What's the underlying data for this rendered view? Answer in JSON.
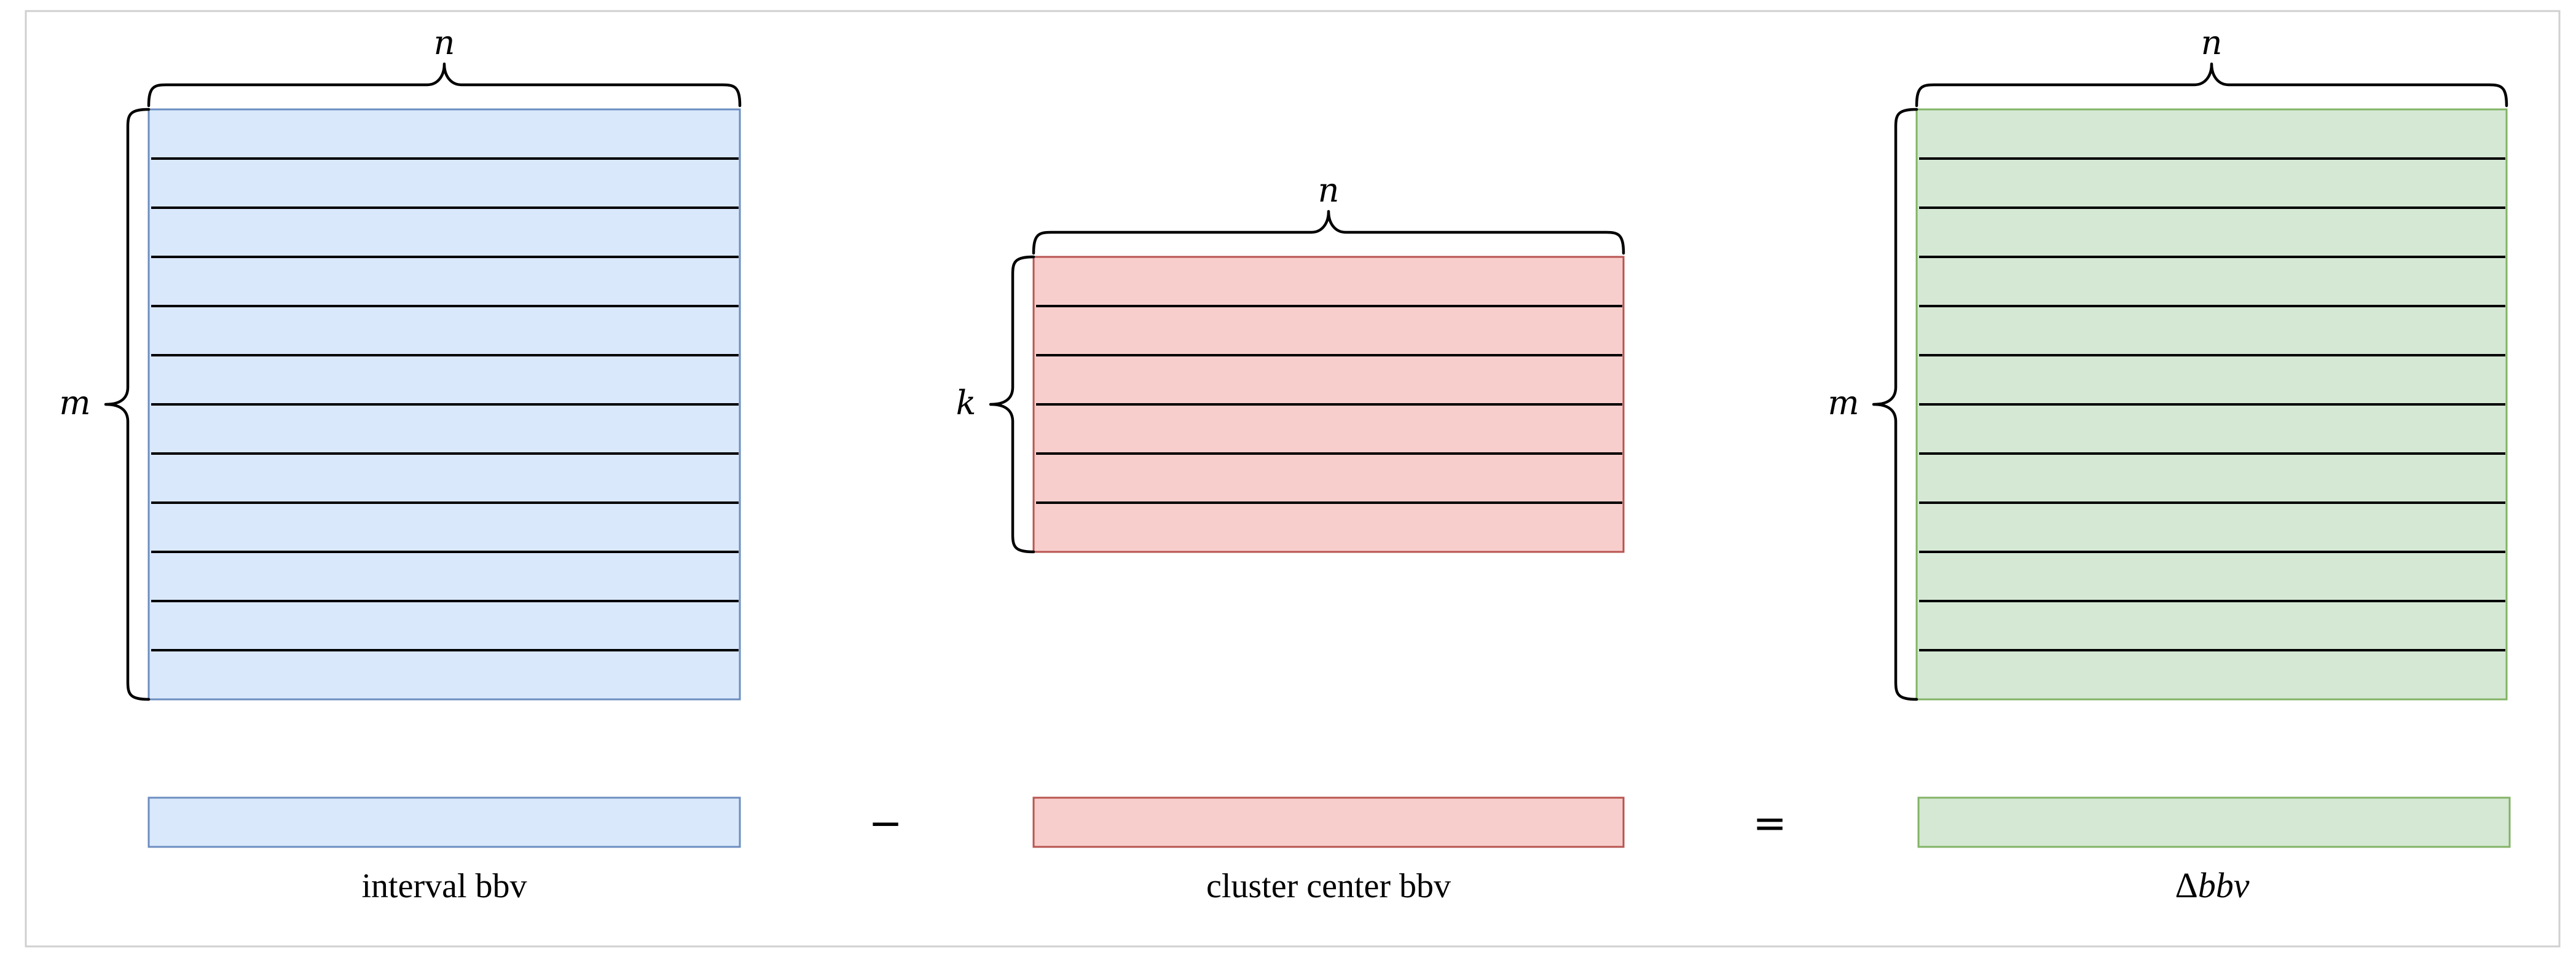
{
  "matrices": [
    {
      "id": "interval",
      "rows": 12,
      "col_label": "n",
      "row_label": "m",
      "fill": "#dae8fc",
      "stroke": "#6c8ebf",
      "caption": "interval bbv",
      "caption_italic": false
    },
    {
      "id": "center",
      "rows": 6,
      "col_label": "n",
      "row_label": "k",
      "fill": "#f8cecc",
      "stroke": "#b85450",
      "caption": "cluster center bbv",
      "caption_italic": false
    },
    {
      "id": "delta",
      "rows": 12,
      "col_label": "n",
      "row_label": "m",
      "fill": "#d5e8d4",
      "stroke": "#82b366",
      "caption_prefix": "Δ",
      "caption_italic_part": "bbv"
    }
  ],
  "operators": {
    "minus": "−",
    "equals": "="
  }
}
